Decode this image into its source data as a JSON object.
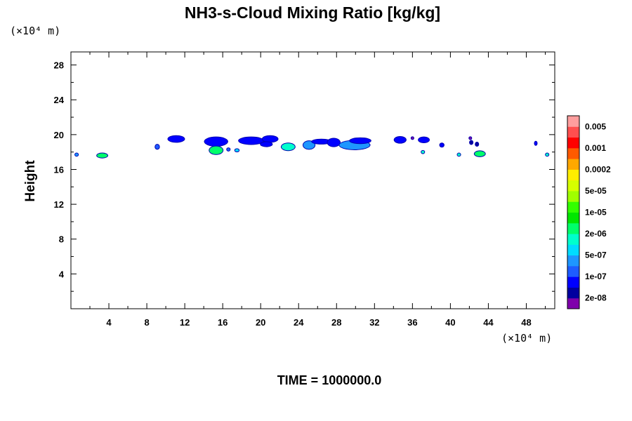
{
  "chart_data": {
    "type": "heatmap",
    "title": "NH3-s-Cloud Mixing Ratio [kg/kg]",
    "ylabel": "Height",
    "y_unit_label": "(×10⁴ m)",
    "x_unit_label": "(×10⁴ m)",
    "xlim": [
      0,
      51
    ],
    "ylim": [
      0,
      29.5
    ],
    "x_ticks": [
      4,
      8,
      12,
      16,
      20,
      24,
      28,
      32,
      36,
      40,
      44,
      48
    ],
    "y_ticks": [
      4,
      8,
      12,
      16,
      20,
      24,
      28
    ],
    "footer": "TIME = 1000000.0",
    "colorbar": {
      "colors": [
        "#7f00ab",
        "#00009f",
        "#0000ff",
        "#1e5cff",
        "#1e96ff",
        "#00dcff",
        "#00ffcc",
        "#00ff6a",
        "#00e600",
        "#33ff00",
        "#a0ff00",
        "#d6ff00",
        "#ffee00",
        "#ffa800",
        "#ff5a00",
        "#ff0000",
        "#ff4f4f",
        "#ff9e9e"
      ],
      "labels": [
        "2e-08",
        "1e-07",
        "5e-07",
        "2e-06",
        "1e-05",
        "5e-05",
        "0.0002",
        "0.001",
        "0.005"
      ]
    },
    "cloud_patches": [
      {
        "x": 0.6,
        "y": 17.7,
        "w": 0.3,
        "h": 0.3,
        "level": 4
      },
      {
        "x": 3.3,
        "y": 17.6,
        "w": 1.1,
        "h": 0.5,
        "level": 7
      },
      {
        "x": 9.1,
        "y": 18.6,
        "w": 0.4,
        "h": 0.5,
        "level": 3
      },
      {
        "x": 11.1,
        "y": 19.5,
        "w": 1.7,
        "h": 0.7,
        "level": 2
      },
      {
        "x": 15.3,
        "y": 19.2,
        "w": 2.4,
        "h": 1.0,
        "level": 2
      },
      {
        "x": 15.3,
        "y": 18.2,
        "w": 1.4,
        "h": 0.9,
        "level": 7
      },
      {
        "x": 16.6,
        "y": 18.3,
        "w": 0.3,
        "h": 0.3,
        "level": 3
      },
      {
        "x": 17.5,
        "y": 18.2,
        "w": 0.4,
        "h": 0.3,
        "level": 5
      },
      {
        "x": 19.0,
        "y": 19.3,
        "w": 2.6,
        "h": 0.8,
        "level": 2
      },
      {
        "x": 21.0,
        "y": 19.5,
        "w": 1.6,
        "h": 0.7,
        "level": 2
      },
      {
        "x": 20.6,
        "y": 18.9,
        "w": 1.2,
        "h": 0.5,
        "level": 2
      },
      {
        "x": 22.9,
        "y": 18.6,
        "w": 1.4,
        "h": 0.8,
        "level": 6
      },
      {
        "x": 25.1,
        "y": 18.8,
        "w": 1.2,
        "h": 0.9,
        "level": 4
      },
      {
        "x": 26.4,
        "y": 19.2,
        "w": 2.0,
        "h": 0.5,
        "level": 2
      },
      {
        "x": 27.7,
        "y": 19.1,
        "w": 1.3,
        "h": 0.9,
        "level": 2
      },
      {
        "x": 29.9,
        "y": 18.8,
        "w": 3.2,
        "h": 1.0,
        "level": 4
      },
      {
        "x": 30.5,
        "y": 19.3,
        "w": 2.2,
        "h": 0.6,
        "level": 2
      },
      {
        "x": 34.7,
        "y": 19.4,
        "w": 1.2,
        "h": 0.7,
        "level": 2
      },
      {
        "x": 36.0,
        "y": 19.6,
        "w": 0.2,
        "h": 0.2,
        "level": 0
      },
      {
        "x": 37.2,
        "y": 19.4,
        "w": 1.1,
        "h": 0.6,
        "level": 2
      },
      {
        "x": 37.1,
        "y": 18.0,
        "w": 0.3,
        "h": 0.3,
        "level": 6
      },
      {
        "x": 39.1,
        "y": 18.8,
        "w": 0.4,
        "h": 0.4,
        "level": 2
      },
      {
        "x": 40.9,
        "y": 17.7,
        "w": 0.3,
        "h": 0.3,
        "level": 6
      },
      {
        "x": 42.1,
        "y": 19.6,
        "w": 0.2,
        "h": 0.2,
        "level": 0
      },
      {
        "x": 42.2,
        "y": 19.1,
        "w": 0.3,
        "h": 0.4,
        "level": 1
      },
      {
        "x": 42.8,
        "y": 18.9,
        "w": 0.3,
        "h": 0.4,
        "level": 1
      },
      {
        "x": 43.1,
        "y": 17.8,
        "w": 1.1,
        "h": 0.6,
        "level": 7
      },
      {
        "x": 49.0,
        "y": 19.0,
        "w": 0.2,
        "h": 0.4,
        "level": 2
      },
      {
        "x": 50.2,
        "y": 17.7,
        "w": 0.3,
        "h": 0.3,
        "level": 6
      }
    ]
  }
}
